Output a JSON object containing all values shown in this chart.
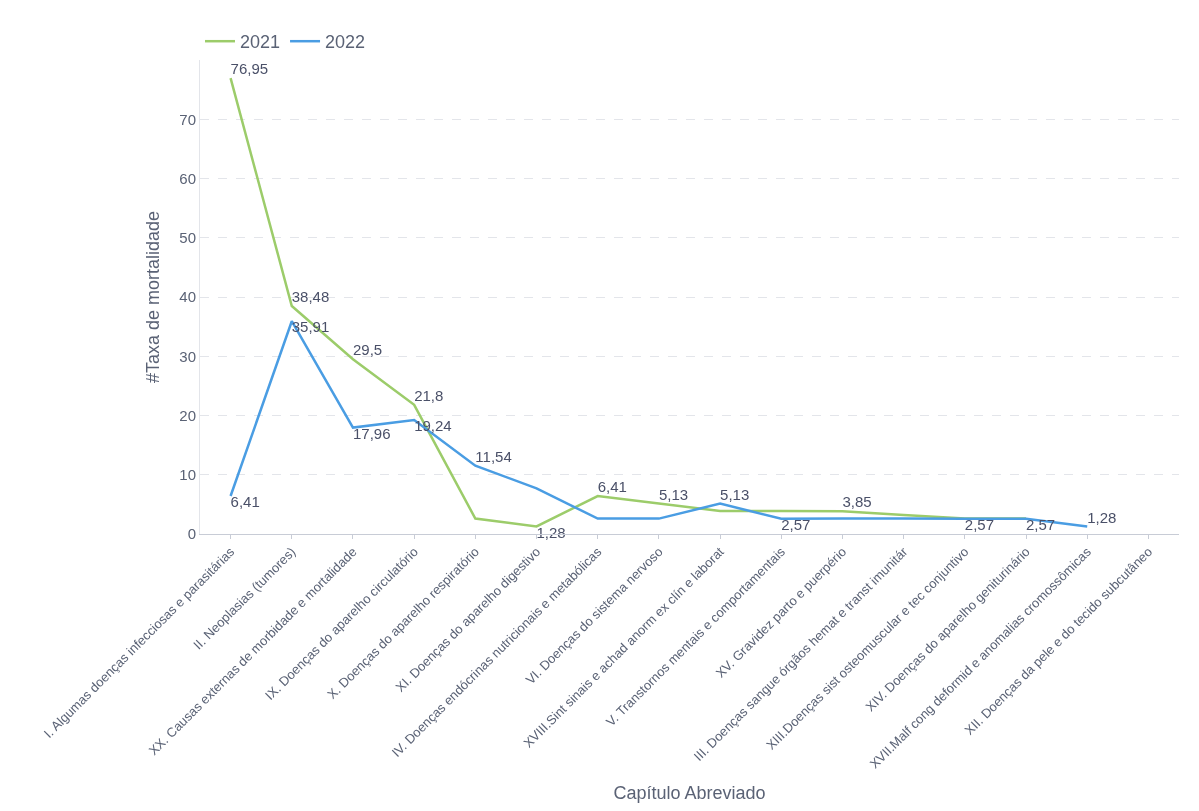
{
  "chart_data": {
    "type": "line",
    "xlabel": "Capítulo Abreviado",
    "ylabel": "#Taxa de mortalidade",
    "categories": [
      "I. Algumas doenças infecciosas e parasitárias",
      "II. Neoplasias (tumores)",
      "XX. Causas externas de morbidade e mortalidade",
      "IX. Doenças do aparelho circulatório",
      "X. Doenças do aparelho respiratório",
      "XI. Doenças do aparelho digestivo",
      "IV. Doenças endócrinas nutricionais e metabólicas",
      "VI. Doenças do sistema nervoso",
      "XVIII.Sint sinais e achad anorm ex clín e laborat",
      "V. Transtornos mentais e comportamentais",
      "XV. Gravidez parto e puerpério",
      "III. Doenças sangue órgãos hemat e transt imunitár",
      "XIII.Doenças sist osteomuscular e tec conjuntivo",
      "XIV. Doenças do aparelho geniturinário",
      "XVII.Malf cong deformid e anomalias cromossômicas",
      "XII. Doenças da pele e do tecido subcutâneo"
    ],
    "series": [
      {
        "name": "2021",
        "color": "#9ccc6a",
        "values": [
          76.95,
          38.48,
          29.5,
          21.8,
          2.6,
          1.28,
          6.41,
          5.13,
          3.9,
          3.9,
          3.85,
          3.2,
          2.6,
          2.6,
          null,
          null
        ],
        "value_labels": [
          "76,95",
          "38,48",
          "29,5",
          "21,8",
          null,
          "1,28",
          "6,41",
          "5,13",
          null,
          null,
          "3,85",
          null,
          null,
          null,
          null,
          null
        ]
      },
      {
        "name": "2022",
        "color": "#4a9de3",
        "values": [
          6.41,
          35.91,
          17.96,
          19.24,
          11.54,
          7.7,
          2.6,
          2.6,
          5.13,
          2.57,
          2.6,
          2.6,
          2.57,
          2.57,
          1.28,
          null
        ],
        "value_labels": [
          "6,41",
          "35,91",
          "17,96",
          "19,24",
          "11,54",
          null,
          null,
          null,
          "5,13",
          "2,57",
          null,
          null,
          "2,57",
          "2,57",
          "1,28",
          null
        ]
      }
    ],
    "ylim": [
      0,
      80
    ],
    "yticks": [
      0,
      10,
      20,
      30,
      40,
      50,
      60,
      70
    ],
    "grid": "y",
    "legend": "top left",
    "marker": "none",
    "line_style": "solid"
  }
}
